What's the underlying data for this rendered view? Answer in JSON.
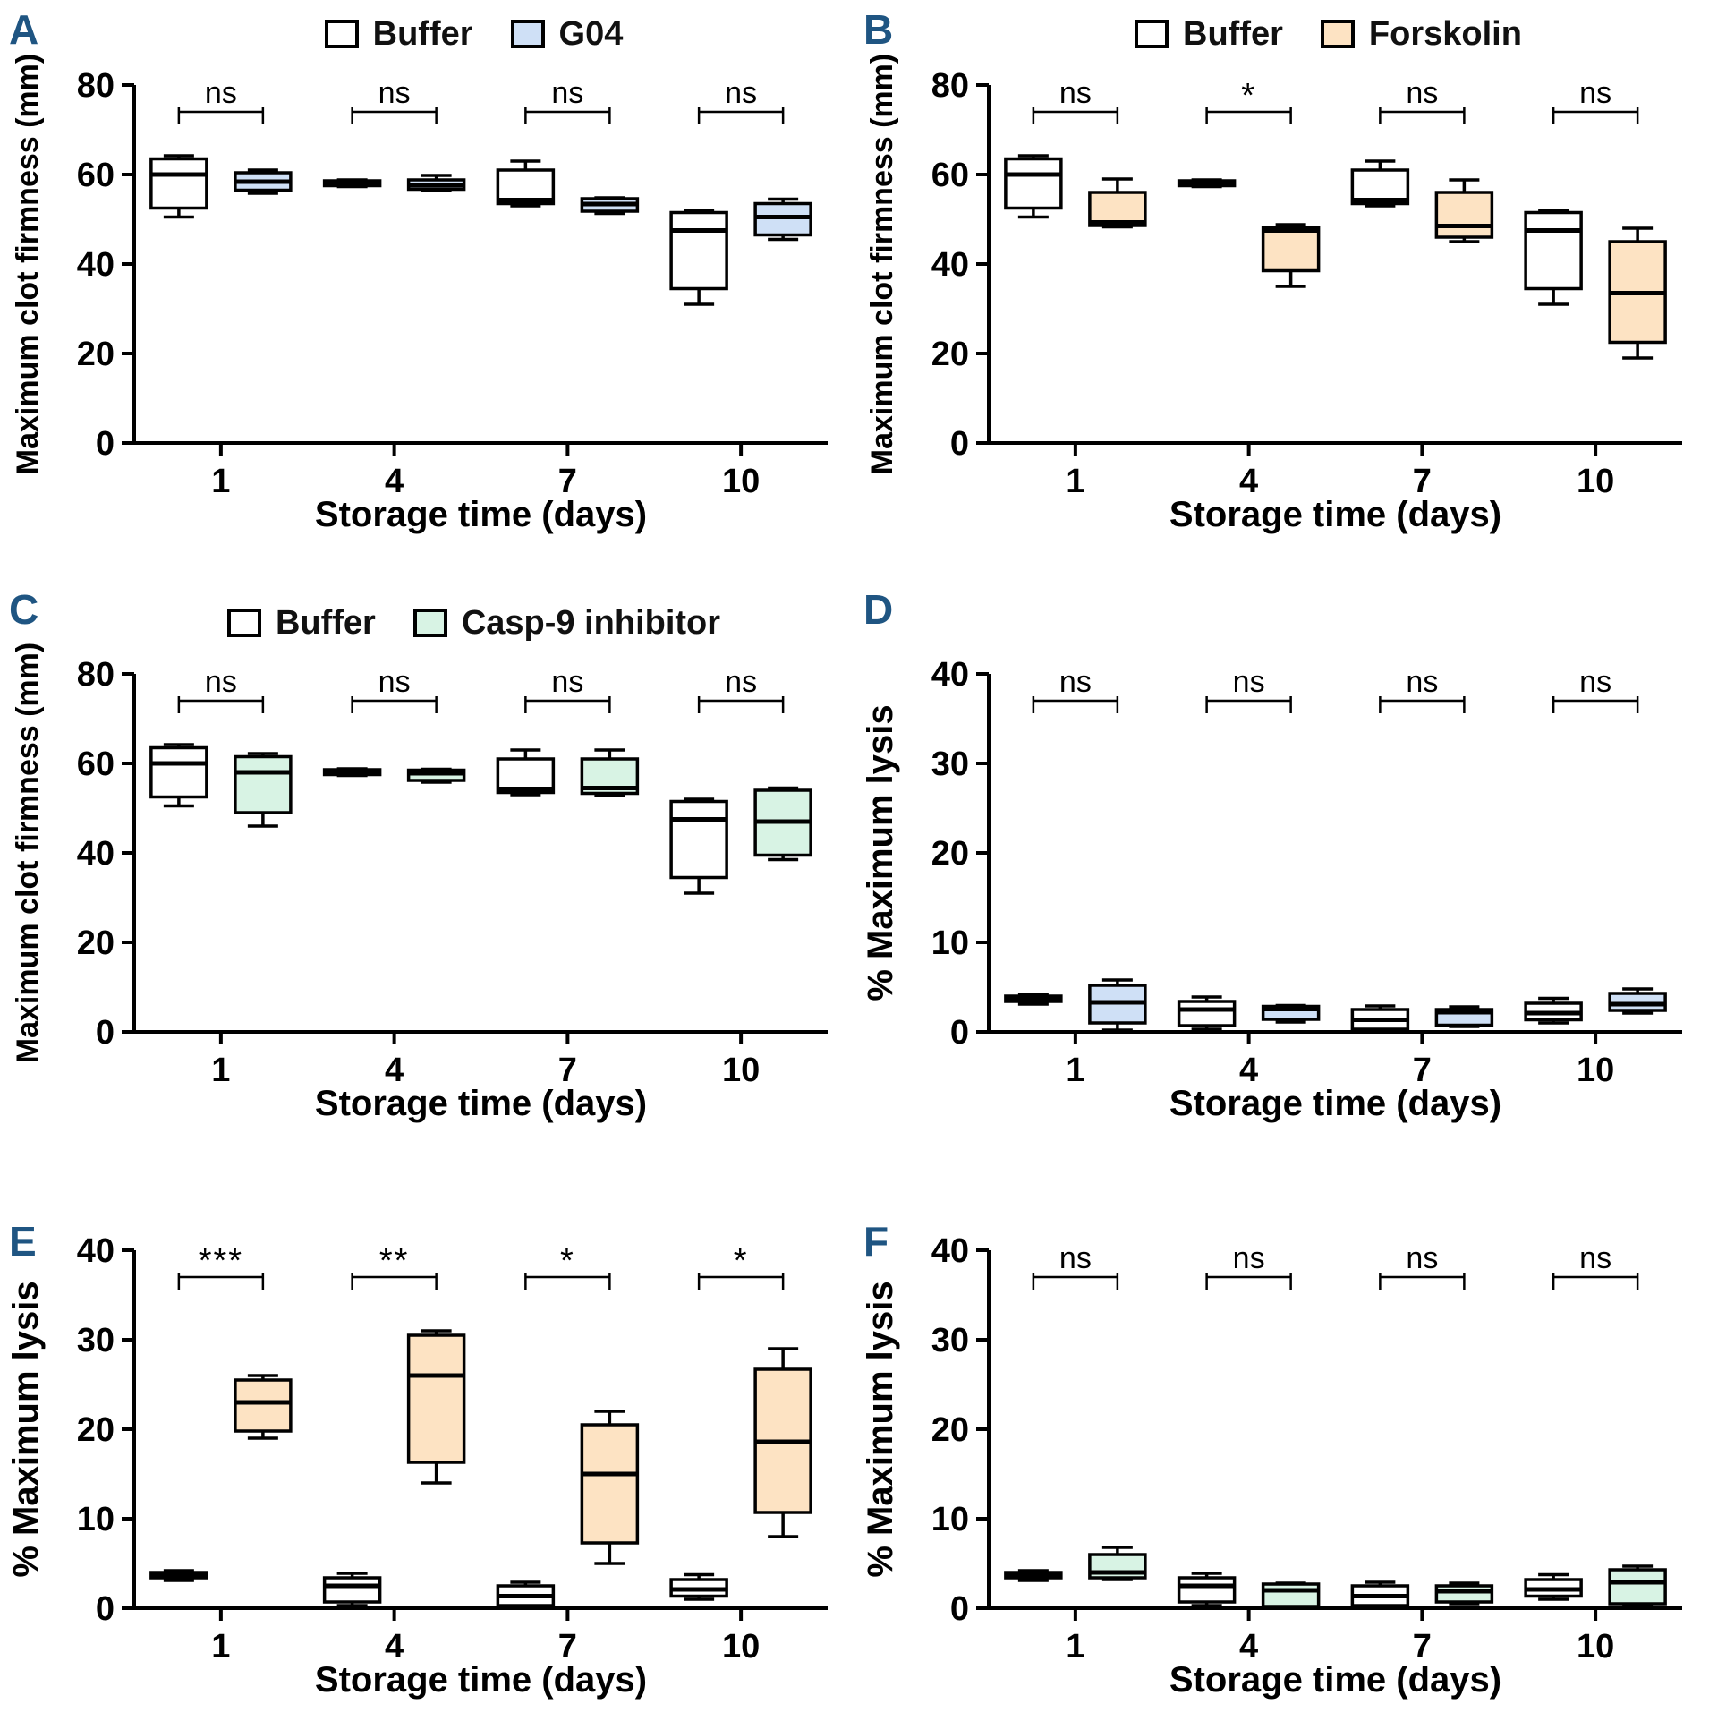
{
  "meta": {
    "panel_label_color": "#1f5582",
    "axis_color": "#000000",
    "box_colors": {
      "buffer": "#ffffff",
      "g04": "#cfe0f6",
      "forskolin": "#fde3c3",
      "casp9": "#d8f3e4"
    }
  },
  "chart_data": [
    {
      "id": "A",
      "label": "A",
      "type": "box",
      "legend": [
        {
          "name": "Buffer",
          "color": "#ffffff"
        },
        {
          "name": "G04",
          "color": "#cfe0f6"
        }
      ],
      "xlabel": "Storage time (days)",
      "ylabel": "Maximum clot firmness (mm)",
      "ylim": [
        0,
        80
      ],
      "yticks": [
        0,
        20,
        40,
        60,
        80
      ],
      "categories": [
        "1",
        "4",
        "7",
        "10"
      ],
      "significance": [
        "ns",
        "ns",
        "ns",
        "ns"
      ],
      "series": [
        {
          "name": "Buffer",
          "color": "#ffffff",
          "boxes": [
            [
              50.5,
              52.5,
              60,
              63.5,
              64.2
            ],
            [
              57.3,
              57.5,
              58,
              58.6,
              58.8
            ],
            [
              53,
              53.5,
              54.3,
              61,
              63
            ],
            [
              31,
              34.5,
              47.5,
              51.5,
              52
            ]
          ]
        },
        {
          "name": "G04",
          "color": "#cfe0f6",
          "boxes": [
            [
              55.8,
              56.5,
              58.4,
              60.4,
              61
            ],
            [
              56.4,
              56.7,
              57.6,
              58.8,
              59.8
            ],
            [
              51.3,
              51.8,
              53.4,
              54.6,
              54.8
            ],
            [
              45.5,
              46.5,
              50.5,
              53.5,
              54.5
            ]
          ]
        }
      ]
    },
    {
      "id": "B",
      "label": "B",
      "type": "box",
      "legend": [
        {
          "name": "Buffer",
          "color": "#ffffff"
        },
        {
          "name": "Forskolin",
          "color": "#fde3c3"
        }
      ],
      "xlabel": "Storage time (days)",
      "ylabel": "Maximum clot firmness (mm)",
      "ylim": [
        0,
        80
      ],
      "yticks": [
        0,
        20,
        40,
        60,
        80
      ],
      "categories": [
        "1",
        "4",
        "7",
        "10"
      ],
      "significance": [
        "ns",
        "*",
        "ns",
        "ns"
      ],
      "series": [
        {
          "name": "Buffer",
          "color": "#ffffff",
          "boxes": [
            [
              50.5,
              52.5,
              60,
              63.5,
              64.2
            ],
            [
              57.3,
              57.5,
              58,
              58.6,
              58.8
            ],
            [
              53,
              53.5,
              54.3,
              61,
              63
            ],
            [
              31,
              34.5,
              47.5,
              51.5,
              52
            ]
          ]
        },
        {
          "name": "Forskolin",
          "color": "#fde3c3",
          "boxes": [
            [
              48.3,
              48.6,
              49.3,
              56,
              59
            ],
            [
              35,
              38.5,
              47.5,
              48.2,
              48.8
            ],
            [
              45,
              46,
              48.5,
              56,
              58.8
            ],
            [
              19,
              22.5,
              33.5,
              45,
              48
            ]
          ]
        }
      ]
    },
    {
      "id": "C",
      "label": "C",
      "type": "box",
      "legend": [
        {
          "name": "Buffer",
          "color": "#ffffff"
        },
        {
          "name": "Casp-9 inhibitor",
          "color": "#d8f3e4"
        }
      ],
      "xlabel": "Storage time (days)",
      "ylabel": "Maximum clot firmness (mm)",
      "ylim": [
        0,
        80
      ],
      "yticks": [
        0,
        20,
        40,
        60,
        80
      ],
      "categories": [
        "1",
        "4",
        "7",
        "10"
      ],
      "significance": [
        "ns",
        "ns",
        "ns",
        "ns"
      ],
      "series": [
        {
          "name": "Buffer",
          "color": "#ffffff",
          "boxes": [
            [
              50.5,
              52.5,
              60,
              63.5,
              64.2
            ],
            [
              57.3,
              57.5,
              58,
              58.6,
              58.8
            ],
            [
              53,
              53.5,
              54.3,
              61,
              63
            ],
            [
              31,
              34.5,
              47.5,
              51.5,
              52
            ]
          ]
        },
        {
          "name": "Casp-9 inhibitor",
          "color": "#d8f3e4",
          "boxes": [
            [
              46,
              49,
              58,
              61.5,
              62.2
            ],
            [
              55.8,
              56.2,
              57.8,
              58.5,
              58.7
            ],
            [
              52.8,
              53.3,
              54.5,
              61,
              63
            ],
            [
              38.5,
              39.5,
              47,
              54,
              54.5
            ]
          ]
        }
      ]
    },
    {
      "id": "D",
      "label": "D",
      "type": "box",
      "legend": [],
      "xlabel": "Storage time (days)",
      "ylabel": "% Maximum lysis",
      "ylim": [
        0,
        40
      ],
      "yticks": [
        0,
        10,
        20,
        30,
        40
      ],
      "categories": [
        "1",
        "4",
        "7",
        "10"
      ],
      "significance": [
        "ns",
        "ns",
        "ns",
        "ns"
      ],
      "series": [
        {
          "name": "Buffer",
          "color": "#ffffff",
          "boxes": [
            [
              3.1,
              3.4,
              3.7,
              4.0,
              4.2
            ],
            [
              0.3,
              0.7,
              2.5,
              3.4,
              3.9
            ],
            [
              0.15,
              0.3,
              1.35,
              2.5,
              2.9
            ],
            [
              1.0,
              1.35,
              2.1,
              3.2,
              3.75
            ]
          ]
        },
        {
          "name": "G04",
          "color": "#cfe0f6",
          "boxes": [
            [
              0.2,
              1.0,
              3.3,
              5.2,
              5.8
            ],
            [
              1.1,
              1.4,
              2.55,
              2.85,
              2.95
            ],
            [
              0.6,
              0.75,
              2.2,
              2.5,
              2.8
            ],
            [
              2.1,
              2.4,
              3.1,
              4.3,
              4.8
            ]
          ]
        }
      ]
    },
    {
      "id": "E",
      "label": "E",
      "type": "box",
      "legend": [],
      "xlabel": "Storage time (days)",
      "ylabel": "% Maximum lysis",
      "ylim": [
        0,
        40
      ],
      "yticks": [
        0,
        10,
        20,
        30,
        40
      ],
      "categories": [
        "1",
        "4",
        "7",
        "10"
      ],
      "significance": [
        "***",
        "**",
        "*",
        "*"
      ],
      "series": [
        {
          "name": "Buffer",
          "color": "#ffffff",
          "boxes": [
            [
              3.1,
              3.4,
              3.7,
              4.0,
              4.2
            ],
            [
              0.3,
              0.7,
              2.5,
              3.4,
              3.9
            ],
            [
              0.15,
              0.3,
              1.35,
              2.5,
              2.9
            ],
            [
              1.0,
              1.35,
              2.1,
              3.2,
              3.75
            ]
          ]
        },
        {
          "name": "Forskolin",
          "color": "#fde3c3",
          "boxes": [
            [
              19,
              19.8,
              23,
              25.5,
              26
            ],
            [
              14,
              16.3,
              26,
              30.5,
              31
            ],
            [
              5,
              7.3,
              15,
              20.5,
              22
            ],
            [
              8,
              10.7,
              18.6,
              26.7,
              29
            ]
          ]
        }
      ]
    },
    {
      "id": "F",
      "label": "F",
      "type": "box",
      "legend": [],
      "xlabel": "Storage time (days)",
      "ylabel": "% Maximum lysis",
      "ylim": [
        0,
        40
      ],
      "yticks": [
        0,
        10,
        20,
        30,
        40
      ],
      "categories": [
        "1",
        "4",
        "7",
        "10"
      ],
      "significance": [
        "ns",
        "ns",
        "ns",
        "ns"
      ],
      "series": [
        {
          "name": "Buffer",
          "color": "#ffffff",
          "boxes": [
            [
              3.1,
              3.4,
              3.7,
              4.0,
              4.2
            ],
            [
              0.3,
              0.7,
              2.5,
              3.4,
              3.9
            ],
            [
              0.15,
              0.3,
              1.35,
              2.5,
              2.9
            ],
            [
              1.0,
              1.35,
              2.1,
              3.2,
              3.75
            ]
          ]
        },
        {
          "name": "Casp-9 inhibitor",
          "color": "#d8f3e4",
          "boxes": [
            [
              3.2,
              3.4,
              4.0,
              6.0,
              6.8
            ],
            [
              0.15,
              0.2,
              2.0,
              2.7,
              2.8
            ],
            [
              0.5,
              0.7,
              1.9,
              2.5,
              2.8
            ],
            [
              0.3,
              0.5,
              2.9,
              4.3,
              4.7
            ]
          ]
        }
      ]
    }
  ]
}
